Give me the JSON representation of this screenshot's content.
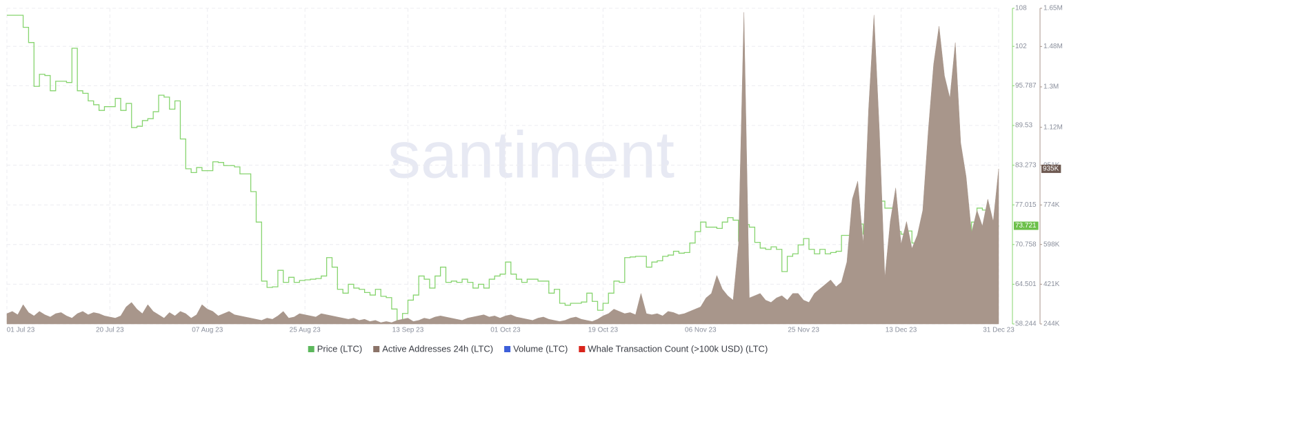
{
  "chart_data": {
    "type": "combo",
    "watermark": "santiment",
    "grid": true,
    "xlim": [
      "2023-07-01",
      "2023-12-31"
    ],
    "xticks": [
      {
        "value": "2023-07-01",
        "label": "01 Jul 23"
      },
      {
        "value": "2023-07-20",
        "label": "20 Jul 23"
      },
      {
        "value": "2023-08-07",
        "label": "07 Aug 23"
      },
      {
        "value": "2023-08-25",
        "label": "25 Aug 23"
      },
      {
        "value": "2023-09-13",
        "label": "13 Sep 23"
      },
      {
        "value": "2023-10-01",
        "label": "01 Oct 23"
      },
      {
        "value": "2023-10-19",
        "label": "19 Oct 23"
      },
      {
        "value": "2023-11-06",
        "label": "06 Nov 23"
      },
      {
        "value": "2023-11-25",
        "label": "25 Nov 23"
      },
      {
        "value": "2023-12-13",
        "label": "13 Dec 23"
      },
      {
        "value": "2023-12-31",
        "label": "31 Dec 23"
      }
    ],
    "ylim": [
      58.244,
      108
    ],
    "yticks": [
      58.244,
      64.501,
      70.758,
      77.015,
      83.273,
      89.53,
      95.787,
      102,
      108
    ],
    "y2lim": [
      244000,
      1650000
    ],
    "y2ticks": [
      {
        "value": 244000,
        "label": "244K"
      },
      {
        "value": 421000,
        "label": "421K"
      },
      {
        "value": 598000,
        "label": "598K"
      },
      {
        "value": 774000,
        "label": "774K"
      },
      {
        "value": 951000,
        "label": "951K"
      },
      {
        "value": 1120000,
        "label": "1.12M"
      },
      {
        "value": 1300000,
        "label": "1.3M"
      },
      {
        "value": 1480000,
        "label": "1.48M"
      },
      {
        "value": 1650000,
        "label": "1.65M"
      }
    ],
    "x": [
      "2023-07-01",
      "2023-07-02",
      "2023-07-03",
      "2023-07-04",
      "2023-07-05",
      "2023-07-06",
      "2023-07-07",
      "2023-07-08",
      "2023-07-09",
      "2023-07-10",
      "2023-07-11",
      "2023-07-12",
      "2023-07-13",
      "2023-07-14",
      "2023-07-15",
      "2023-07-16",
      "2023-07-17",
      "2023-07-18",
      "2023-07-19",
      "2023-07-20",
      "2023-07-21",
      "2023-07-22",
      "2023-07-23",
      "2023-07-24",
      "2023-07-25",
      "2023-07-26",
      "2023-07-27",
      "2023-07-28",
      "2023-07-29",
      "2023-07-30",
      "2023-07-31",
      "2023-08-01",
      "2023-08-02",
      "2023-08-03",
      "2023-08-04",
      "2023-08-05",
      "2023-08-06",
      "2023-08-07",
      "2023-08-08",
      "2023-08-09",
      "2023-08-10",
      "2023-08-11",
      "2023-08-12",
      "2023-08-13",
      "2023-08-14",
      "2023-08-15",
      "2023-08-16",
      "2023-08-17",
      "2023-08-18",
      "2023-08-19",
      "2023-08-20",
      "2023-08-21",
      "2023-08-22",
      "2023-08-23",
      "2023-08-24",
      "2023-08-25",
      "2023-08-26",
      "2023-08-27",
      "2023-08-28",
      "2023-08-29",
      "2023-08-30",
      "2023-08-31",
      "2023-09-01",
      "2023-09-02",
      "2023-09-03",
      "2023-09-04",
      "2023-09-05",
      "2023-09-06",
      "2023-09-07",
      "2023-09-08",
      "2023-09-09",
      "2023-09-10",
      "2023-09-11",
      "2023-09-12",
      "2023-09-13",
      "2023-09-14",
      "2023-09-15",
      "2023-09-16",
      "2023-09-17",
      "2023-09-18",
      "2023-09-19",
      "2023-09-20",
      "2023-09-21",
      "2023-09-22",
      "2023-09-23",
      "2023-09-24",
      "2023-09-25",
      "2023-09-26",
      "2023-09-27",
      "2023-09-28",
      "2023-09-29",
      "2023-09-30",
      "2023-10-01",
      "2023-10-02",
      "2023-10-03",
      "2023-10-04",
      "2023-10-05",
      "2023-10-06",
      "2023-10-07",
      "2023-10-08",
      "2023-10-09",
      "2023-10-10",
      "2023-10-11",
      "2023-10-12",
      "2023-10-13",
      "2023-10-14",
      "2023-10-15",
      "2023-10-16",
      "2023-10-17",
      "2023-10-18",
      "2023-10-19",
      "2023-10-20",
      "2023-10-21",
      "2023-10-22",
      "2023-10-23",
      "2023-10-24",
      "2023-10-25",
      "2023-10-26",
      "2023-10-27",
      "2023-10-28",
      "2023-10-29",
      "2023-10-30",
      "2023-10-31",
      "2023-11-01",
      "2023-11-02",
      "2023-11-03",
      "2023-11-04",
      "2023-11-05",
      "2023-11-06",
      "2023-11-07",
      "2023-11-08",
      "2023-11-09",
      "2023-11-10",
      "2023-11-11",
      "2023-11-12",
      "2023-11-13",
      "2023-11-14",
      "2023-11-15",
      "2023-11-16",
      "2023-11-17",
      "2023-11-18",
      "2023-11-19",
      "2023-11-20",
      "2023-11-21",
      "2023-11-22",
      "2023-11-23",
      "2023-11-24",
      "2023-11-25",
      "2023-11-26",
      "2023-11-27",
      "2023-11-28",
      "2023-11-29",
      "2023-11-30",
      "2023-12-01",
      "2023-12-02",
      "2023-12-03",
      "2023-12-04",
      "2023-12-05",
      "2023-12-06",
      "2023-12-07",
      "2023-12-08",
      "2023-12-09",
      "2023-12-10",
      "2023-12-11",
      "2023-12-12",
      "2023-12-13",
      "2023-12-14",
      "2023-12-15",
      "2023-12-16",
      "2023-12-17",
      "2023-12-18",
      "2023-12-19",
      "2023-12-20",
      "2023-12-21",
      "2023-12-22",
      "2023-12-23",
      "2023-12-24",
      "2023-12-25",
      "2023-12-26",
      "2023-12-27",
      "2023-12-28",
      "2023-12-29",
      "2023-12-30",
      "2023-12-31"
    ],
    "series": [
      {
        "name": "Price (LTC)",
        "type": "step",
        "axis": "y",
        "color": "#86d46e",
        "legend_color": "#5cb85c",
        "last_label": 73.721,
        "values": [
          106.9,
          106.9,
          106.9,
          105.0,
          102.6,
          95.7,
          97.6,
          97.4,
          95.0,
          96.5,
          96.5,
          96.3,
          101.7,
          95.0,
          94.6,
          93.4,
          92.8,
          91.9,
          92.5,
          92.5,
          93.8,
          91.9,
          93.0,
          89.2,
          89.4,
          90.3,
          90.6,
          91.7,
          94.3,
          94.0,
          92.1,
          93.4,
          87.4,
          82.7,
          82.1,
          82.9,
          82.4,
          82.4,
          83.8,
          83.7,
          83.2,
          83.2,
          83.0,
          81.9,
          81.9,
          79.1,
          74.3,
          65.0,
          64.0,
          64.1,
          66.7,
          64.8,
          65.6,
          64.8,
          65.1,
          65.2,
          65.3,
          65.4,
          65.8,
          68.7,
          67.2,
          63.7,
          63.1,
          64.5,
          63.9,
          63.7,
          63.2,
          62.8,
          63.7,
          62.6,
          62.4,
          60.6,
          58.7,
          59.9,
          62.0,
          62.8,
          65.8,
          65.3,
          63.9,
          65.8,
          67.2,
          64.8,
          65.0,
          64.8,
          65.3,
          64.8,
          63.9,
          64.5,
          63.9,
          65.3,
          65.8,
          66.1,
          68.0,
          66.1,
          65.3,
          64.8,
          65.3,
          65.3,
          65.0,
          65.0,
          63.1,
          63.7,
          61.5,
          61.2,
          61.5,
          61.5,
          61.7,
          63.1,
          61.8,
          60.4,
          61.5,
          63.1,
          65.0,
          64.8,
          68.7,
          68.8,
          68.9,
          68.9,
          67.2,
          68.0,
          68.2,
          68.9,
          69.1,
          69.7,
          69.4,
          69.5,
          71.0,
          72.8,
          74.3,
          73.5,
          73.5,
          73.3,
          74.3,
          75.0,
          74.6,
          71.3,
          73.9,
          73.5,
          71.1,
          70.2,
          70.0,
          70.4,
          70.0,
          66.5,
          68.9,
          69.3,
          70.7,
          71.7,
          70.0,
          69.3,
          70.0,
          69.3,
          69.5,
          69.7,
          72.2,
          72.2,
          72.4,
          74.0,
          72.4,
          76.2,
          78.3,
          77.6,
          76.5,
          76.5,
          72.8,
          72.4,
          72.9,
          71.0,
          71.8,
          71.8,
          70.7,
          70.4,
          70.2,
          70.2,
          73.5,
          72.4,
          71.3,
          72.4,
          74.3,
          76.5,
          76.2,
          73.5,
          73.7,
          73.721
        ]
      },
      {
        "name": "Active Addresses 24h (LTC)",
        "type": "area",
        "axis": "y2",
        "color": "#a8968b",
        "legend_color": "#8b7368",
        "last_label": {
          "value": 935000,
          "label": "935K"
        },
        "values": [
          290000,
          300000,
          285000,
          330000,
          295000,
          280000,
          300000,
          285000,
          275000,
          290000,
          295000,
          280000,
          270000,
          290000,
          300000,
          285000,
          295000,
          290000,
          280000,
          275000,
          270000,
          280000,
          320000,
          340000,
          310000,
          290000,
          330000,
          300000,
          285000,
          270000,
          295000,
          280000,
          300000,
          290000,
          270000,
          285000,
          330000,
          310000,
          300000,
          280000,
          290000,
          300000,
          285000,
          280000,
          275000,
          270000,
          265000,
          260000,
          270000,
          265000,
          280000,
          300000,
          270000,
          275000,
          290000,
          285000,
          280000,
          275000,
          290000,
          285000,
          280000,
          275000,
          270000,
          265000,
          270000,
          260000,
          265000,
          255000,
          260000,
          250000,
          255000,
          250000,
          260000,
          265000,
          270000,
          255000,
          260000,
          270000,
          265000,
          275000,
          280000,
          275000,
          270000,
          265000,
          260000,
          270000,
          275000,
          280000,
          285000,
          275000,
          280000,
          270000,
          280000,
          285000,
          275000,
          270000,
          265000,
          260000,
          270000,
          275000,
          265000,
          260000,
          255000,
          260000,
          270000,
          275000,
          265000,
          260000,
          255000,
          265000,
          280000,
          290000,
          310000,
          300000,
          290000,
          295000,
          285000,
          380000,
          290000,
          285000,
          290000,
          280000,
          300000,
          295000,
          285000,
          290000,
          300000,
          310000,
          320000,
          360000,
          380000,
          460000,
          400000,
          370000,
          350000,
          600000,
          1632000,
          360000,
          370000,
          380000,
          350000,
          340000,
          360000,
          370000,
          350000,
          380000,
          380000,
          350000,
          340000,
          380000,
          400000,
          420000,
          440000,
          410000,
          430000,
          520000,
          800000,
          880000,
          600000,
          1200000,
          1620000,
          1100000,
          450000,
          700000,
          850000,
          600000,
          700000,
          580000,
          640000,
          750000,
          1100000,
          1400000,
          1570000,
          1350000,
          1250000,
          1497000,
          1050000,
          900000,
          650000,
          750000,
          680000,
          800000,
          700000,
          935000
        ]
      },
      {
        "name": "Volume (LTC)",
        "color": "#3d5fd9"
      },
      {
        "name": "Whale Transaction Count (>100k USD) (LTC)",
        "color": "#d9241b"
      }
    ]
  }
}
